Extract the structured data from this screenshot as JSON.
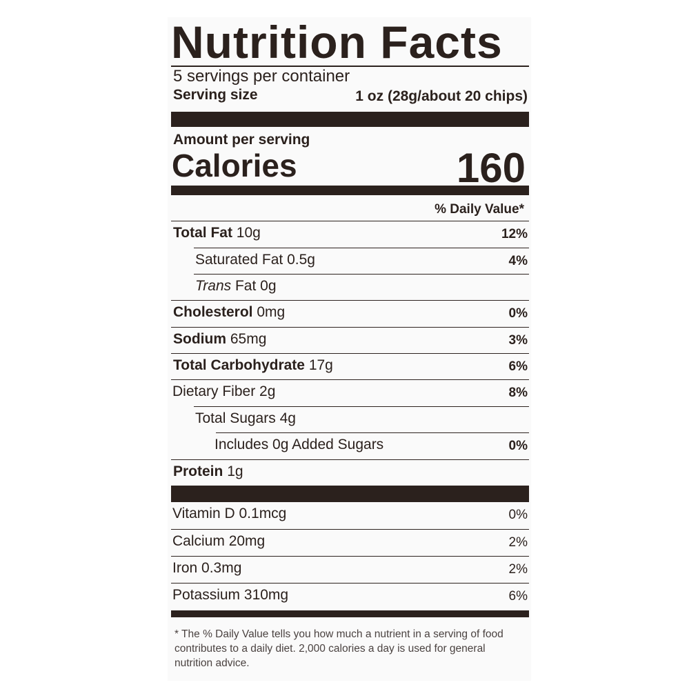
{
  "title": "Nutrition Facts",
  "servings_per_container": "5 servings per container",
  "serving_size_label": "Serving size",
  "serving_size_value": "1 oz (28g/about 20 chips)",
  "amount_per_serving": "Amount per serving",
  "calories_label": "Calories",
  "calories_value": "160",
  "daily_value_header": "% Daily Value*",
  "nutrients": [
    {
      "name": "Total Fat",
      "amount": "10g",
      "dv": "12%"
    },
    {
      "name": "Saturated Fat",
      "amount": "0.5g",
      "dv": "4%"
    },
    {
      "name": "Trans",
      "name_suffix": "Fat",
      "amount": "0g",
      "dv": ""
    },
    {
      "name": "Cholesterol",
      "amount": "0mg",
      "dv": "0%"
    },
    {
      "name": "Sodium",
      "amount": "65mg",
      "dv": "3%"
    },
    {
      "name": "Total Carbohydrate",
      "amount": "17g",
      "dv": "6%"
    },
    {
      "name": "Dietary Fiber",
      "amount": "2g",
      "dv": "8%"
    },
    {
      "name": "Total Sugars",
      "amount": "4g",
      "dv": ""
    },
    {
      "name": "Includes 0g Added Sugars",
      "amount": "",
      "dv": "0%"
    },
    {
      "name": "Protein",
      "amount": "1g",
      "dv": ""
    }
  ],
  "vitamins": [
    {
      "name": "Vitamin D",
      "amount": "0.1mcg",
      "dv": "0%"
    },
    {
      "name": "Calcium",
      "amount": "20mg",
      "dv": "2%"
    },
    {
      "name": "Iron",
      "amount": "0.3mg",
      "dv": "2%"
    },
    {
      "name": "Potassium",
      "amount": "310mg",
      "dv": "6%"
    }
  ],
  "footnote": "* The % Daily Value tells you how much a nutrient in a serving of food contributes to a daily diet. 2,000 calories a day is used for general nutrition advice.",
  "colors": {
    "text": "#2b211d",
    "background": "#fafafa"
  }
}
